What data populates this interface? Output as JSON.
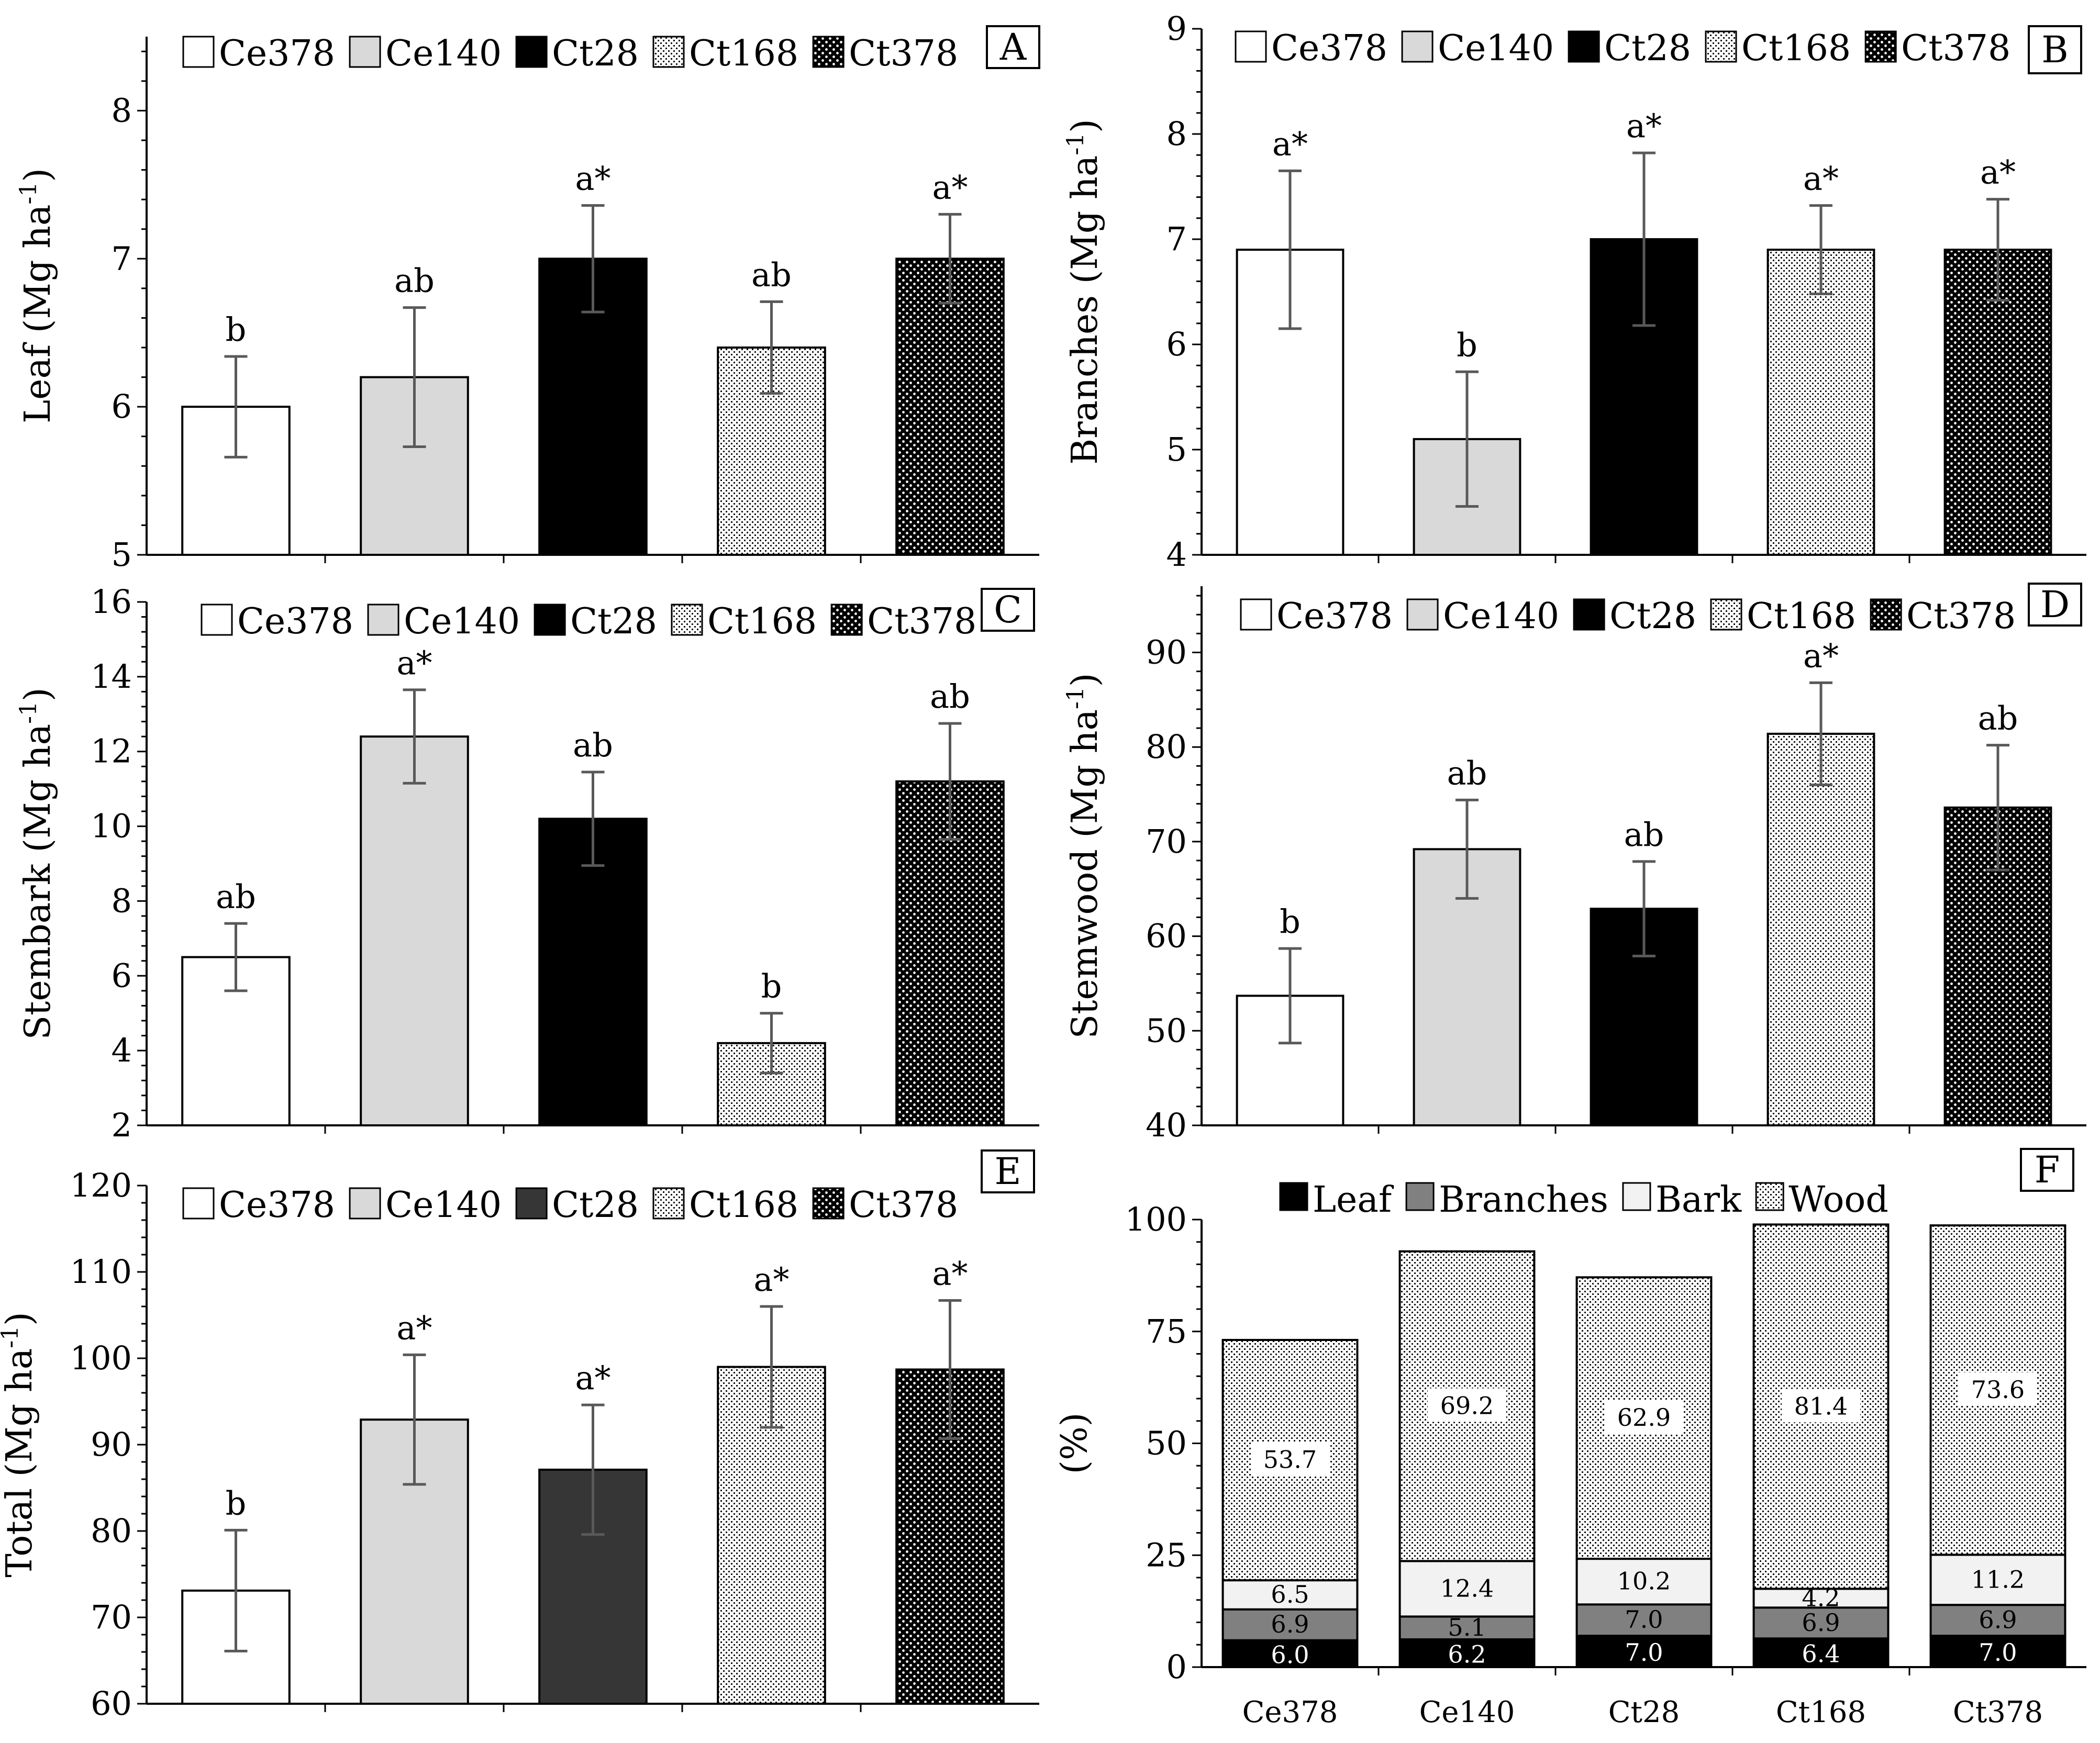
{
  "patterns": {
    "Ce378": {
      "fill": "#ffffff"
    },
    "Ce140": {
      "fill": "#d9d9d9"
    },
    "Ct28": {
      "fill": "#000000"
    },
    "Ct168": {
      "fill": "dots-light"
    },
    "Ct378": {
      "fill": "dots-dark"
    }
  },
  "chart_data": [
    {
      "panel": "A",
      "type": "bar",
      "ylabel": "Leaf (Mg ha",
      "ylabel_sup": "-1",
      "ylabel_close": ")",
      "ylim": [
        5,
        8.5
      ],
      "yticks": [
        5,
        6,
        7,
        8
      ],
      "categories": [
        "Ce378",
        "Ce140",
        "Ct28",
        "Ct168",
        "Ct378"
      ],
      "values": [
        6.0,
        6.2,
        7.0,
        6.4,
        7.0
      ],
      "errors": [
        0.34,
        0.47,
        0.36,
        0.31,
        0.3
      ],
      "letters": [
        "b",
        "ab",
        "a*",
        "ab",
        "a*"
      ],
      "legend": [
        "Ce378",
        "Ce140",
        "Ct28",
        "Ct168",
        "Ct378"
      ]
    },
    {
      "panel": "B",
      "type": "bar",
      "ylabel": "Branches (Mg ha",
      "ylabel_sup": "-1",
      "ylabel_close": ")",
      "ylim": [
        4,
        9
      ],
      "yticks": [
        4,
        5,
        6,
        7,
        8,
        9
      ],
      "categories": [
        "Ce378",
        "Ce140",
        "Ct28",
        "Ct168",
        "Ct378"
      ],
      "values": [
        6.9,
        5.1,
        7.0,
        6.9,
        6.9
      ],
      "errors": [
        0.75,
        0.64,
        0.82,
        0.42,
        0.48
      ],
      "letters": [
        "a*",
        "b",
        "a*",
        "a*",
        "a*"
      ],
      "legend": [
        "Ce378",
        "Ce140",
        "Ct28",
        "Ct168",
        "Ct378"
      ]
    },
    {
      "panel": "C",
      "type": "bar",
      "ylabel": "Stembark (Mg ha",
      "ylabel_sup": "-1",
      "ylabel_close": ")",
      "ylim": [
        2,
        16
      ],
      "yticks": [
        2,
        4,
        6,
        8,
        10,
        12,
        14,
        16
      ],
      "categories": [
        "Ce378",
        "Ce140",
        "Ct28",
        "Ct168",
        "Ct378"
      ],
      "values": [
        6.5,
        12.4,
        10.2,
        4.2,
        11.2
      ],
      "errors": [
        0.9,
        1.25,
        1.25,
        0.8,
        1.55
      ],
      "letters": [
        "ab",
        "a*",
        "ab",
        "b",
        "ab"
      ],
      "legend": [
        "Ce378",
        "Ce140",
        "Ct28",
        "Ct168",
        "Ct378"
      ]
    },
    {
      "panel": "D",
      "type": "bar",
      "ylabel": "Stemwood (Mg ha",
      "ylabel_sup": "-1",
      "ylabel_close": ")",
      "ylim": [
        40,
        97
      ],
      "yticks": [
        40,
        50,
        60,
        70,
        80,
        90
      ],
      "categories": [
        "Ce378",
        "Ce140",
        "Ct28",
        "Ct168",
        "Ct378"
      ],
      "values": [
        53.7,
        69.2,
        62.9,
        81.4,
        73.6
      ],
      "errors": [
        5.0,
        5.2,
        5.0,
        5.4,
        6.6
      ],
      "letters": [
        "b",
        "ab",
        "ab",
        "a*",
        "ab"
      ],
      "legend": [
        "Ce378",
        "Ce140",
        "Ct28",
        "Ct168",
        "Ct378"
      ]
    },
    {
      "panel": "E",
      "type": "bar",
      "ylabel": "Total (Mg ha",
      "ylabel_sup": "-1",
      "ylabel_close": ")",
      "ylim": [
        60,
        120
      ],
      "yticks": [
        60,
        70,
        80,
        90,
        100,
        110,
        120
      ],
      "categories": [
        "Ce378",
        "Ce140",
        "Ct28",
        "Ct168",
        "Ct378"
      ],
      "values": [
        73.1,
        92.9,
        87.1,
        99.0,
        98.7
      ],
      "errors": [
        7.0,
        7.5,
        7.5,
        7.0,
        8.0
      ],
      "letters": [
        "b",
        "a*",
        "a*",
        "a*",
        "a*"
      ],
      "legend": [
        "Ce378",
        "Ce140",
        "Ct28",
        "Ct168",
        "Ct378"
      ],
      "ct28_fill": "#363636"
    },
    {
      "panel": "F",
      "type": "stacked-bar",
      "ylabel": "(%)",
      "ylim": [
        0,
        100
      ],
      "yticks": [
        0,
        25,
        50,
        75,
        100
      ],
      "categories": [
        "Ce378",
        "Ce140",
        "Ct28",
        "Ct168",
        "Ct378"
      ],
      "series": [
        {
          "name": "Leaf",
          "values": [
            6.0,
            6.2,
            7.0,
            6.4,
            7.0
          ]
        },
        {
          "name": "Branches",
          "values": [
            6.9,
            5.1,
            7.0,
            6.9,
            6.9
          ]
        },
        {
          "name": "Bark",
          "values": [
            6.5,
            12.4,
            10.2,
            4.2,
            11.2
          ]
        },
        {
          "name": "Wood",
          "values": [
            53.7,
            69.2,
            62.9,
            81.4,
            73.6
          ]
        }
      ],
      "labels": {
        "Leaf": [
          "6.0",
          "6.2",
          "7.0",
          "6.4",
          "7.0"
        ],
        "Branches": [
          "6.9",
          "5.1",
          "7.0",
          "6.9",
          "6.9"
        ],
        "Bark": [
          "6.5",
          "12.4",
          "10.2",
          "4.2",
          "11.2"
        ],
        "Wood": [
          "53.7",
          "69.2",
          "62.9",
          "81.4",
          "73.6"
        ]
      },
      "legend": [
        "Leaf",
        "Branches",
        "Bark",
        "Wood"
      ]
    }
  ]
}
